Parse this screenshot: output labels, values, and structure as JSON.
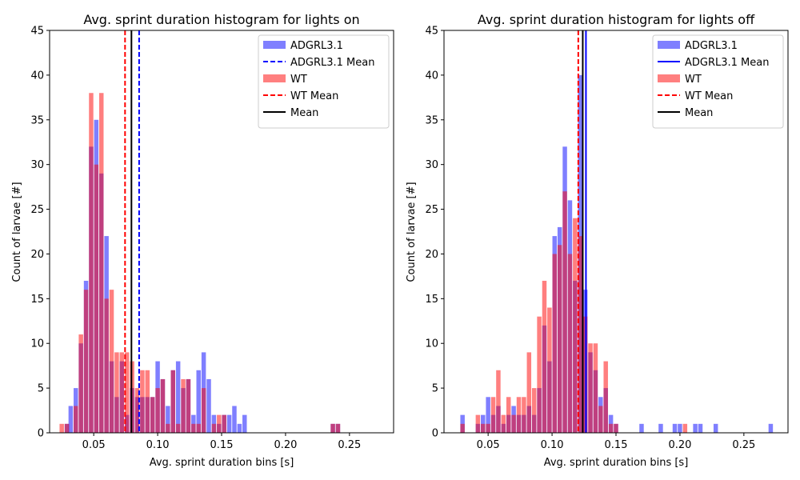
{
  "chart_data": [
    {
      "type": "bar",
      "title": "Avg. sprint duration histogram for lights on",
      "xlabel": "Avg. sprint duration bins [s]",
      "ylabel": "Count of larvae [#]",
      "xlim": [
        0.0155,
        0.2845
      ],
      "ylim": [
        0,
        45
      ],
      "xticks": [
        0.05,
        0.1,
        0.15,
        0.2,
        0.25
      ],
      "xtick_labels": [
        "0.05",
        "0.10",
        "0.15",
        "0.20",
        "0.25"
      ],
      "yticks": [
        0,
        5,
        10,
        15,
        20,
        25,
        30,
        35,
        40,
        45
      ],
      "ytick_labels": [
        "0",
        "5",
        "10",
        "15",
        "20",
        "25",
        "30",
        "35",
        "40",
        "45"
      ],
      "bin_width": 0.0039,
      "legend_position": "top-right",
      "series": [
        {
          "name": "ADGRL3.1",
          "color": "#0000ff",
          "opacity": 0.5,
          "points": [
            [
              0.029,
              1
            ],
            [
              0.032,
              3
            ],
            [
              0.036,
              5
            ],
            [
              0.04,
              10
            ],
            [
              0.044,
              17
            ],
            [
              0.048,
              32
            ],
            [
              0.052,
              35
            ],
            [
              0.056,
              29
            ],
            [
              0.06,
              22
            ],
            [
              0.064,
              8
            ],
            [
              0.068,
              4
            ],
            [
              0.072,
              8
            ],
            [
              0.076,
              2
            ],
            [
              0.08,
              5
            ],
            [
              0.084,
              4
            ],
            [
              0.088,
              4
            ],
            [
              0.092,
              4
            ],
            [
              0.096,
              4
            ],
            [
              0.1,
              8
            ],
            [
              0.104,
              6
            ],
            [
              0.108,
              3
            ],
            [
              0.112,
              7
            ],
            [
              0.116,
              8
            ],
            [
              0.12,
              5
            ],
            [
              0.124,
              6
            ],
            [
              0.128,
              2
            ],
            [
              0.132,
              7
            ],
            [
              0.136,
              9
            ],
            [
              0.14,
              6
            ],
            [
              0.144,
              2
            ],
            [
              0.148,
              1
            ],
            [
              0.152,
              2
            ],
            [
              0.156,
              2
            ],
            [
              0.16,
              3
            ],
            [
              0.164,
              1
            ],
            [
              0.168,
              2
            ],
            [
              0.237,
              1
            ],
            [
              0.241,
              1
            ]
          ]
        },
        {
          "name": "WT",
          "color": "#ff0000",
          "opacity": 0.5,
          "points": [
            [
              0.025,
              1
            ],
            [
              0.029,
              1
            ],
            [
              0.036,
              3
            ],
            [
              0.04,
              11
            ],
            [
              0.044,
              16
            ],
            [
              0.048,
              38
            ],
            [
              0.052,
              30
            ],
            [
              0.056,
              38
            ],
            [
              0.06,
              15
            ],
            [
              0.064,
              16
            ],
            [
              0.068,
              9
            ],
            [
              0.072,
              9
            ],
            [
              0.076,
              9
            ],
            [
              0.08,
              8
            ],
            [
              0.084,
              5
            ],
            [
              0.088,
              7
            ],
            [
              0.092,
              7
            ],
            [
              0.096,
              4
            ],
            [
              0.1,
              5
            ],
            [
              0.104,
              6
            ],
            [
              0.108,
              1
            ],
            [
              0.112,
              7
            ],
            [
              0.116,
              1
            ],
            [
              0.12,
              6
            ],
            [
              0.124,
              6
            ],
            [
              0.128,
              1
            ],
            [
              0.132,
              1
            ],
            [
              0.136,
              5
            ],
            [
              0.144,
              1
            ],
            [
              0.148,
              2
            ],
            [
              0.152,
              2
            ],
            [
              0.237,
              1
            ],
            [
              0.241,
              1
            ]
          ]
        }
      ],
      "reference_lines": [
        {
          "name": "ADGRL3.1 Mean",
          "x": 0.0855,
          "color": "#0000ff",
          "style": "dashed"
        },
        {
          "name": "WT Mean",
          "x": 0.0745,
          "color": "#ff0000",
          "style": "dashed"
        },
        {
          "name": "Mean",
          "x": 0.0795,
          "color": "#000000",
          "style": "solid"
        }
      ]
    },
    {
      "type": "bar",
      "title": "Avg. sprint duration histogram for lights off",
      "xlabel": "Avg. sprint duration bins [s]",
      "ylabel": "Count of larvae [#]",
      "xlim": [
        0.0155,
        0.2845
      ],
      "ylim": [
        0,
        45
      ],
      "xticks": [
        0.05,
        0.1,
        0.15,
        0.2,
        0.25
      ],
      "xtick_labels": [
        "0.05",
        "0.10",
        "0.15",
        "0.20",
        "0.25"
      ],
      "yticks": [
        0,
        5,
        10,
        15,
        20,
        25,
        30,
        35,
        40,
        45
      ],
      "ytick_labels": [
        "0",
        "5",
        "10",
        "15",
        "20",
        "25",
        "30",
        "35",
        "40",
        "45"
      ],
      "bin_width": 0.0039,
      "legend_position": "top-right",
      "series": [
        {
          "name": "ADGRL3.1",
          "color": "#0000ff",
          "opacity": 0.5,
          "points": [
            [
              0.03,
              2
            ],
            [
              0.042,
              1
            ],
            [
              0.046,
              2
            ],
            [
              0.05,
              4
            ],
            [
              0.054,
              2
            ],
            [
              0.058,
              3
            ],
            [
              0.062,
              1
            ],
            [
              0.066,
              2
            ],
            [
              0.07,
              3
            ],
            [
              0.074,
              2
            ],
            [
              0.078,
              2
            ],
            [
              0.082,
              3
            ],
            [
              0.086,
              2
            ],
            [
              0.09,
              5
            ],
            [
              0.094,
              12
            ],
            [
              0.098,
              8
            ],
            [
              0.102,
              22
            ],
            [
              0.106,
              23
            ],
            [
              0.11,
              32
            ],
            [
              0.114,
              26
            ],
            [
              0.118,
              17
            ],
            [
              0.122,
              40
            ],
            [
              0.126,
              16
            ],
            [
              0.13,
              9
            ],
            [
              0.134,
              7
            ],
            [
              0.138,
              4
            ],
            [
              0.142,
              5
            ],
            [
              0.146,
              2
            ],
            [
              0.15,
              1
            ],
            [
              0.17,
              1
            ],
            [
              0.185,
              1
            ],
            [
              0.196,
              1
            ],
            [
              0.2,
              1
            ],
            [
              0.212,
              1
            ],
            [
              0.216,
              1
            ],
            [
              0.228,
              1
            ],
            [
              0.271,
              1
            ]
          ]
        },
        {
          "name": "WT",
          "color": "#ff0000",
          "opacity": 0.5,
          "points": [
            [
              0.03,
              1
            ],
            [
              0.042,
              2
            ],
            [
              0.046,
              1
            ],
            [
              0.05,
              1
            ],
            [
              0.054,
              4
            ],
            [
              0.058,
              7
            ],
            [
              0.062,
              2
            ],
            [
              0.066,
              4
            ],
            [
              0.07,
              2
            ],
            [
              0.074,
              4
            ],
            [
              0.078,
              4
            ],
            [
              0.082,
              9
            ],
            [
              0.086,
              5
            ],
            [
              0.09,
              13
            ],
            [
              0.094,
              17
            ],
            [
              0.098,
              14
            ],
            [
              0.102,
              20
            ],
            [
              0.106,
              21
            ],
            [
              0.11,
              27
            ],
            [
              0.114,
              20
            ],
            [
              0.118,
              24
            ],
            [
              0.122,
              22
            ],
            [
              0.126,
              13
            ],
            [
              0.13,
              10
            ],
            [
              0.134,
              10
            ],
            [
              0.138,
              3
            ],
            [
              0.142,
              8
            ],
            [
              0.146,
              1
            ],
            [
              0.15,
              1
            ],
            [
              0.204,
              1
            ]
          ]
        }
      ],
      "reference_lines": [
        {
          "name": "ADGRL3.1 Mean",
          "x": 0.1265,
          "color": "#0000ff",
          "style": "solid"
        },
        {
          "name": "WT Mean",
          "x": 0.1205,
          "color": "#ff0000",
          "style": "dashed"
        },
        {
          "name": "Mean",
          "x": 0.124,
          "color": "#000000",
          "style": "solid"
        }
      ]
    }
  ]
}
